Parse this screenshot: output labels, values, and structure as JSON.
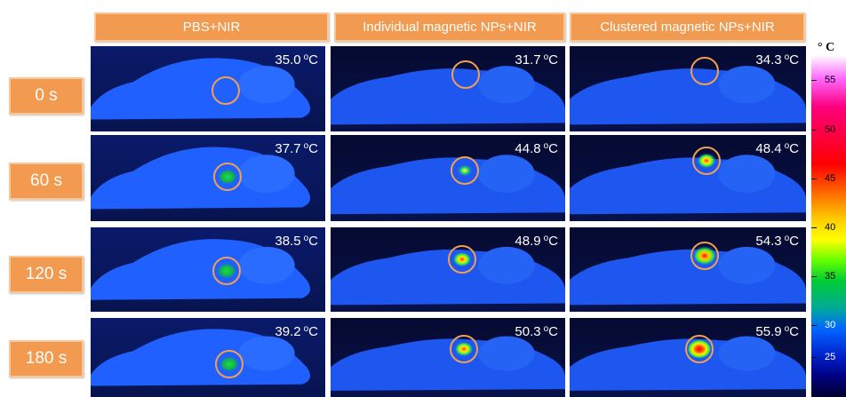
{
  "columns": [
    {
      "label": "PBS+NIR"
    },
    {
      "label": "Individual magnetic NPs+NIR"
    },
    {
      "label": "Clustered magnetic NPs+NIR"
    }
  ],
  "rows": [
    {
      "label": "0 s",
      "temps": [
        "35.0",
        "31.7",
        "34.3"
      ]
    },
    {
      "label": "60 s",
      "temps": [
        "37.7",
        "44.8",
        "48.4"
      ]
    },
    {
      "label": "120 s",
      "temps": [
        "38.5",
        "48.9",
        "54.3"
      ]
    },
    {
      "label": "180 s",
      "temps": [
        "39.2",
        "50.3",
        "55.9"
      ]
    }
  ],
  "temp_unit": "°C",
  "temp_unit_prefix": "o",
  "temp_unit_suffix": "C",
  "colorbar": {
    "unit": "° C",
    "ticks": [
      "55",
      "50",
      "45",
      "40",
      "35",
      "30",
      "25"
    ]
  },
  "colors": {
    "label_fill": "#f29a4f",
    "label_border": "#f7c89a",
    "roi_circle": "#f0a050"
  }
}
